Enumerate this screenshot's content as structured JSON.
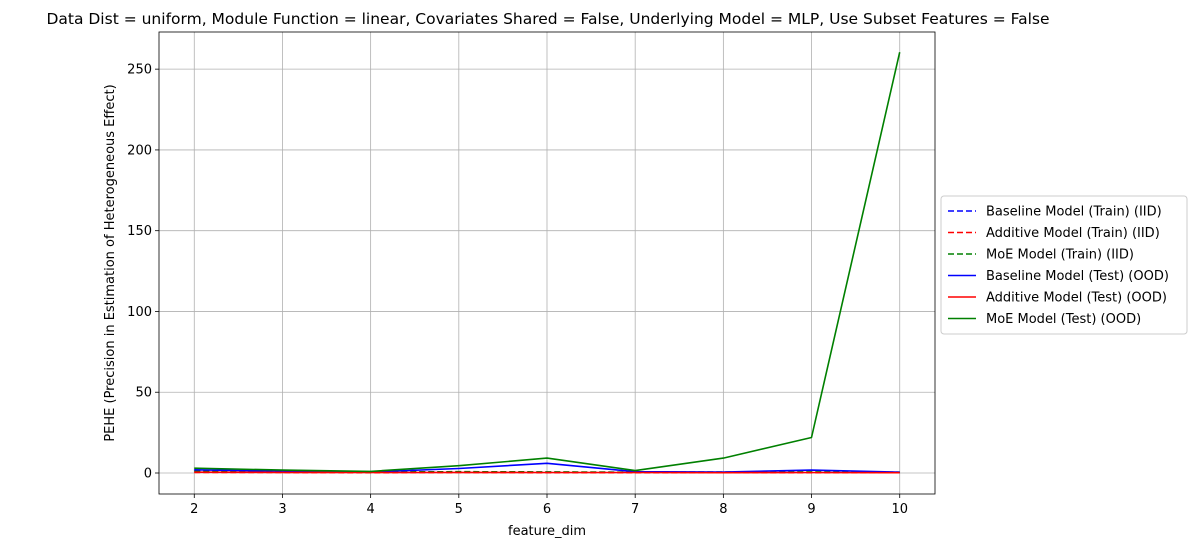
{
  "chart_data": {
    "type": "line",
    "title": "Data Dist = uniform, Module Function = linear, Covariates Shared = False, Underlying Model = MLP, Use Subset Features = False",
    "xlabel": "feature_dim",
    "ylabel": "PEHE (Precision in Estimation of Heterogeneous Effect)",
    "xlim": [
      1.6,
      10.4
    ],
    "ylim": [
      -13.0,
      273.0
    ],
    "x_ticks": [
      2,
      3,
      4,
      5,
      6,
      7,
      8,
      9,
      10
    ],
    "y_ticks": [
      0,
      50,
      100,
      150,
      200,
      250
    ],
    "grid": true,
    "legend_position": "center-right outside",
    "x": [
      2,
      3,
      4,
      5,
      6,
      7,
      8,
      9,
      10
    ],
    "series": [
      {
        "name": "Baseline Model (Train) (IID)",
        "color": "#0000ff",
        "style": "dashed",
        "values": [
          1.5,
          0.8,
          0.5,
          0.6,
          0.5,
          0.3,
          0.3,
          0.4,
          0.3
        ]
      },
      {
        "name": "Additive Model (Train) (IID)",
        "color": "#ff0000",
        "style": "dashed",
        "values": [
          0.4,
          0.3,
          0.2,
          0.3,
          0.2,
          0.2,
          0.2,
          0.2,
          0.2
        ]
      },
      {
        "name": "MoE Model (Train) (IID)",
        "color": "#008000",
        "style": "dashed",
        "values": [
          1.2,
          0.9,
          0.6,
          0.8,
          0.7,
          0.5,
          0.6,
          0.7,
          0.5
        ]
      },
      {
        "name": "Baseline Model (Test) (OOD)",
        "color": "#0000ff",
        "style": "solid",
        "values": [
          2.0,
          1.2,
          0.6,
          2.8,
          6.0,
          0.8,
          0.6,
          1.8,
          0.5
        ]
      },
      {
        "name": "Additive Model (Test) (OOD)",
        "color": "#ff0000",
        "style": "solid",
        "values": [
          0.5,
          0.4,
          0.3,
          0.4,
          0.3,
          0.3,
          0.2,
          0.3,
          0.2
        ]
      },
      {
        "name": "MoE Model (Test) (OOD)",
        "color": "#008000",
        "style": "solid",
        "values": [
          3.0,
          1.8,
          1.0,
          4.5,
          9.2,
          1.5,
          9.2,
          22.0,
          260.5
        ]
      }
    ]
  }
}
